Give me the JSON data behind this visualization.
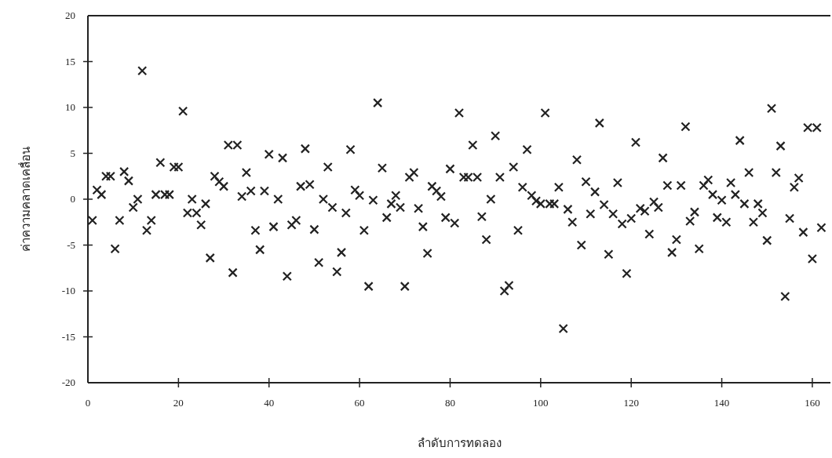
{
  "chart_data": {
    "type": "scatter",
    "xlabel": "ลำดับการทดลอง",
    "ylabel": "ค่าความคลาดเคลื่อน",
    "marker": "cross",
    "xlim": [
      0,
      164
    ],
    "ylim": [
      -20,
      20
    ],
    "xticks": [
      0,
      20,
      40,
      60,
      80,
      100,
      120,
      140,
      160
    ],
    "yticks": [
      -20,
      -15,
      -10,
      -5,
      0,
      5,
      10,
      15,
      20
    ],
    "series": [
      {
        "color": "#222222",
        "x": [
          1,
          2,
          3,
          4,
          5,
          6,
          7,
          8,
          9,
          10,
          11,
          12,
          13,
          14,
          15,
          16,
          17,
          18,
          19,
          20,
          21,
          22,
          23,
          24,
          25,
          26,
          27,
          28,
          29,
          30,
          31,
          32,
          33,
          34,
          35,
          36,
          37,
          38,
          39,
          40,
          41,
          42,
          43,
          44,
          45,
          46,
          47,
          48,
          49,
          50,
          51,
          52,
          53,
          54,
          55,
          56,
          57,
          58,
          59,
          60,
          61,
          62,
          63,
          64,
          65,
          66,
          67,
          68,
          69,
          70,
          71,
          72,
          73,
          74,
          75,
          76,
          77,
          78,
          79,
          80,
          81,
          82,
          83,
          84,
          85,
          86,
          87,
          88,
          89,
          90,
          91,
          92,
          93,
          94,
          95,
          96,
          97,
          98,
          99,
          100,
          101,
          102,
          103,
          104,
          105,
          106,
          107,
          108,
          109,
          110,
          111,
          112,
          113,
          114,
          115,
          116,
          117,
          118,
          119,
          120,
          121,
          122,
          123,
          124,
          125,
          126,
          127,
          128,
          129,
          130,
          131,
          132,
          133,
          134,
          135,
          136,
          137,
          138,
          139,
          140,
          141,
          142,
          143,
          144,
          145,
          146,
          147,
          148,
          149,
          150,
          151,
          152,
          153,
          154,
          155,
          156,
          157,
          158,
          159,
          160,
          161,
          162
        ],
        "values": [
          -2.3,
          1.0,
          0.5,
          2.5,
          2.5,
          -5.4,
          -2.3,
          3.0,
          2.0,
          -0.9,
          0,
          14,
          -3.4,
          -2.3,
          0.5,
          4.0,
          0.5,
          0.5,
          3.5,
          3.5,
          9.6,
          -1.5,
          0,
          -1.5,
          -2.8,
          -0.5,
          -6.4,
          2.5,
          1.9,
          1.4,
          5.9,
          -8,
          5.9,
          0.3,
          2.9,
          0.9,
          -3.4,
          -5.5,
          0.9,
          4.9,
          -3.0,
          0,
          4.5,
          -8.4,
          -2.8,
          -2.3,
          1.4,
          5.5,
          1.6,
          -3.3,
          -6.9,
          0,
          3.5,
          -0.9,
          -7.9,
          -5.8,
          -1.5,
          5.4,
          1.0,
          0.4,
          -3.4,
          -9.5,
          -0.1,
          10.5,
          3.4,
          -2.0,
          -0.5,
          0.4,
          -0.9,
          -9.5,
          2.4,
          2.9,
          -1.0,
          -3.0,
          -5.9,
          1.4,
          0.9,
          0.3,
          -2.0,
          3.3,
          -2.6,
          9.4,
          2.4,
          2.4,
          5.9,
          2.4,
          -1.9,
          -4.4,
          0,
          6.9,
          2.4,
          -10,
          -9.4,
          3.5,
          -3.4,
          1.3,
          5.4,
          0.4,
          -0.2,
          -0.5,
          9.4,
          -0.5,
          -0.5,
          1.3,
          -14.1,
          -1.1,
          -2.5,
          4.3,
          -5.0,
          1.9,
          -1.6,
          0.8,
          8.3,
          -0.6,
          -6.0,
          -1.6,
          1.8,
          -2.7,
          -8.1,
          -2.1,
          6.2,
          -1.0,
          -1.3,
          -3.8,
          -0.3,
          -0.9,
          4.5,
          1.5,
          -5.8,
          -4.4,
          1.5,
          7.9,
          -2.4,
          -1.4,
          -5.4,
          1.5,
          2.1,
          0.5,
          -2.0,
          -0.1,
          -2.5,
          1.8,
          0.5,
          6.4,
          -0.5,
          2.9,
          -2.5,
          -0.5,
          -1.5,
          -4.5,
          9.9,
          2.9,
          5.8,
          -10.6,
          -2.1,
          1.3,
          2.3,
          -3.6,
          7.8,
          -6.5,
          7.8,
          -3.1
        ]
      }
    ]
  }
}
